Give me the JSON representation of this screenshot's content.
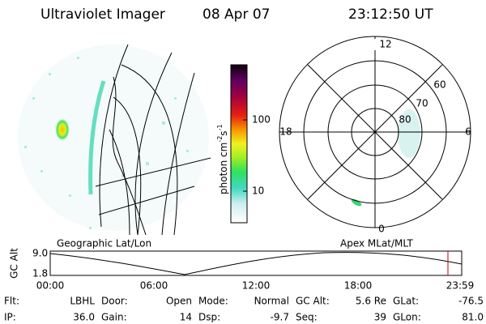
{
  "header": {
    "title": "Ultraviolet Imager",
    "date": "08 Apr 07",
    "time": "23:12:50 UT"
  },
  "colorbar": {
    "label": [
      "photon cm",
      "-2",
      "s",
      "-1"
    ],
    "ticks": [
      "100",
      "10"
    ]
  },
  "polar": {
    "clock": [
      "12",
      "18",
      "6",
      "0"
    ],
    "latitudes": [
      "60",
      "70",
      "80"
    ]
  },
  "altitude_panel": {
    "axis_label": "GC Alt",
    "y_labels": [
      "9.0",
      "1.8"
    ],
    "left_title": "Geographic Lat/Lon",
    "right_title": "Apex MLat/MLT",
    "x_labels": [
      "00:00",
      "06:00",
      "12:00",
      "18:00",
      "23:59"
    ]
  },
  "footer": {
    "rows": [
      [
        [
          "Flt:",
          "LBHL"
        ],
        [
          "Door:",
          "Open"
        ],
        [
          "Mode:",
          "Normal"
        ],
        [
          "GC Alt:",
          "5.6 Re"
        ],
        [
          "GLat:",
          "-76.5"
        ]
      ],
      [
        [
          "IP:",
          "36.0"
        ],
        [
          "Gain:",
          "14"
        ],
        [
          "Dsp:",
          "-9.7"
        ],
        [
          "Seq:",
          "39"
        ],
        [
          "GLon:",
          "81.0"
        ]
      ]
    ]
  }
}
